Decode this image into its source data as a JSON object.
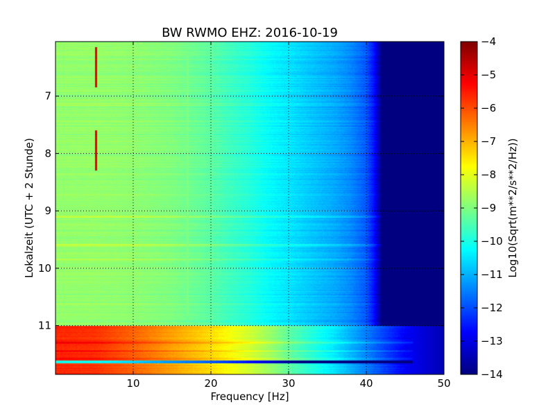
{
  "chart_data": {
    "type": "heatmap",
    "title": "BW RWMO EHZ: 2016-10-19",
    "xlabel": "Frequency [Hz]",
    "ylabel": "Lokalzeit (UTC + 2 Stunde)",
    "colorbar_label": "Log10(Sqrt(m**2/s**2/Hz))",
    "colormap": "jet",
    "xlim": [
      0,
      50
    ],
    "ylim": [
      6.05,
      11.85
    ],
    "y_inverted": true,
    "x_ticks": [
      10,
      20,
      30,
      40,
      50
    ],
    "y_ticks": [
      7,
      8,
      9,
      10,
      11
    ],
    "x_tick_labels": [
      "10",
      "20",
      "30",
      "40",
      "50"
    ],
    "y_tick_labels": [
      "7",
      "8",
      "9",
      "10",
      "11"
    ],
    "color_range": [
      -14,
      -4
    ],
    "color_ticks": [
      -14,
      -13,
      -12,
      -11,
      -10,
      -9,
      -8,
      -7,
      -6,
      -5,
      -4
    ],
    "color_tick_labels": [
      "−14",
      "−13",
      "−12",
      "−11",
      "−10",
      "−9",
      "−8",
      "−7",
      "−6",
      "−5",
      "−4"
    ],
    "grid": true,
    "regime_change_time": 11.0,
    "background_profile_before": {
      "frequency": [
        0,
        5,
        10,
        15,
        20,
        22,
        25,
        28,
        30,
        33,
        36,
        38,
        40,
        41,
        42,
        50
      ],
      "value": [
        -8.8,
        -8.8,
        -8.85,
        -9.0,
        -9.35,
        -9.6,
        -9.9,
        -10.3,
        -10.5,
        -10.8,
        -11.1,
        -11.4,
        -11.9,
        -12.6,
        -14,
        -14
      ]
    },
    "background_profile_after": {
      "frequency": [
        0,
        5,
        10,
        15,
        20,
        25,
        28,
        30,
        33,
        36,
        40,
        45,
        50
      ],
      "value": [
        -5.6,
        -5.7,
        -6.2,
        -6.8,
        -7.4,
        -8.2,
        -8.8,
        -9.3,
        -9.9,
        -10.5,
        -11.5,
        -12.8,
        -13.5
      ]
    },
    "bright_time_bands": [
      {
        "time": 9.1,
        "offset": 0.35
      },
      {
        "time": 9.6,
        "offset": 0.45
      },
      {
        "time": 9.85,
        "offset": 0.25
      },
      {
        "time": 11.3,
        "offset": 0.45
      },
      {
        "time": 11.45,
        "offset": 0.4
      },
      {
        "time": 11.58,
        "offset": 0.4
      }
    ],
    "dark_time_bands": [
      {
        "time": 11.63,
        "offset": -4.5
      }
    ],
    "narrow_lines": [
      {
        "frequency": 5.2,
        "time_start": 6.15,
        "time_end": 6.85,
        "value": -5.0
      },
      {
        "frequency": 5.2,
        "time_start": 7.6,
        "time_end": 8.3,
        "value": -5.0
      },
      {
        "frequency": 17.0,
        "time_start": 6.3,
        "time_end": 10.8,
        "value": -9.0
      }
    ]
  }
}
